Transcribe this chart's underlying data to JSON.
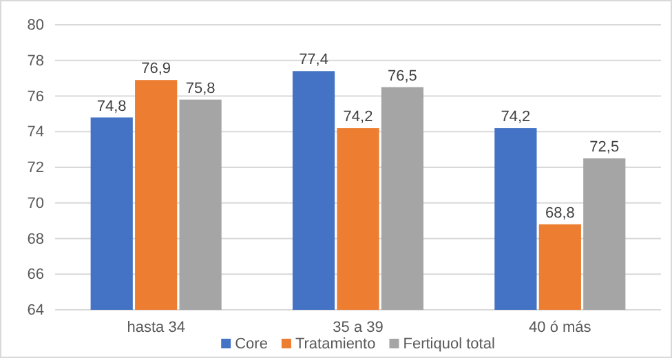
{
  "chart_data": {
    "type": "bar",
    "categories": [
      "hasta 34",
      "35 a 39",
      "40 ó más"
    ],
    "series": [
      {
        "name": "Core",
        "color": "#4472c4",
        "values": [
          74.8,
          77.4,
          74.2
        ],
        "value_labels": [
          "74,8",
          "77,4",
          "74,2"
        ]
      },
      {
        "name": "Tratamiento",
        "color": "#ed7d31",
        "values": [
          76.9,
          74.2,
          68.8
        ],
        "value_labels": [
          "76,9",
          "74,2",
          "68,8"
        ]
      },
      {
        "name": "Fertiquol total",
        "color": "#a5a5a5",
        "values": [
          75.8,
          76.5,
          72.5
        ],
        "value_labels": [
          "75,8",
          "76,5",
          "72,5"
        ]
      }
    ],
    "ylim": [
      64,
      80
    ],
    "yticks": [
      64,
      66,
      68,
      70,
      72,
      74,
      76,
      78,
      80
    ],
    "grid": "y",
    "legend": "bottom"
  }
}
